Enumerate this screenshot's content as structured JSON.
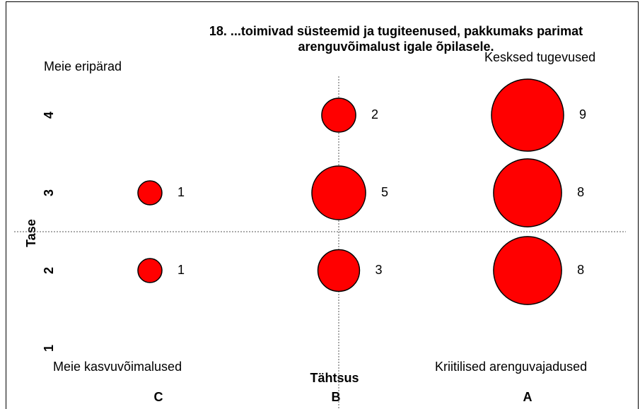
{
  "chart_data": {
    "type": "bubble",
    "title": [
      "18. ...toimivad süsteemid ja tugiteenused, pakkumaks parimat",
      "arenguvõimalust igale õpilasele."
    ],
    "x_label": "Tähtsus",
    "y_label": "Tase",
    "categories": [
      "C",
      "B",
      "A"
    ],
    "ylim": [
      0.5,
      4.5
    ],
    "yticks": [
      1,
      2,
      3,
      4
    ],
    "divider_x": "B",
    "divider_y": 2.5,
    "quadrants": [
      {
        "text": "Meie eripärad",
        "color": "#999999"
      },
      {
        "text": "Kesksed tugevused",
        "color": "#0000ff"
      },
      {
        "text": "Meie kasvuvõimalused",
        "color": "#99cc00"
      },
      {
        "text": "Kriitilised arenguvajadused",
        "color": "#ff0000"
      }
    ],
    "series": [
      {
        "color": "#ff0000",
        "x": [
          "C",
          "C",
          "B",
          "B",
          "B",
          "A",
          "A",
          "A"
        ],
        "y": [
          3,
          2,
          4,
          3,
          2,
          4,
          3,
          2
        ],
        "sizes": [
          1,
          1,
          2,
          5,
          3,
          9,
          8,
          8
        ]
      }
    ]
  }
}
